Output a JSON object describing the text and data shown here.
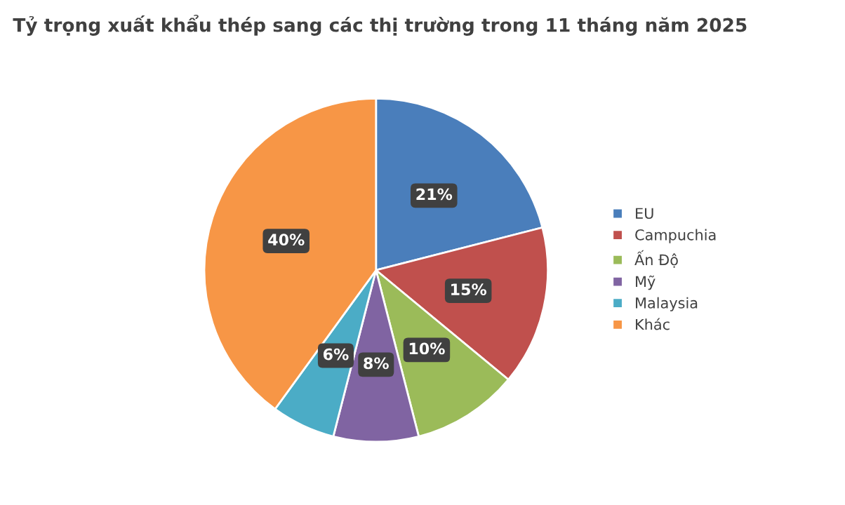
{
  "chart_data": {
    "type": "pie",
    "title": "Tỷ trọng xuất khẩu thép sang các thị trường trong 11 tháng năm 2025",
    "categories": [
      "EU",
      "Campuchia",
      "Ấn Độ",
      "Mỹ",
      "Malaysia",
      "Khác"
    ],
    "values": [
      21,
      15,
      10,
      8,
      6,
      40
    ],
    "colors": [
      "#4a7ebb",
      "#c0504d",
      "#9bbb59",
      "#8064a2",
      "#4bacc6",
      "#f79646"
    ],
    "value_labels": [
      "21%",
      "15%",
      "10%",
      "8%",
      "6%",
      "40%"
    ],
    "legend": "right"
  }
}
